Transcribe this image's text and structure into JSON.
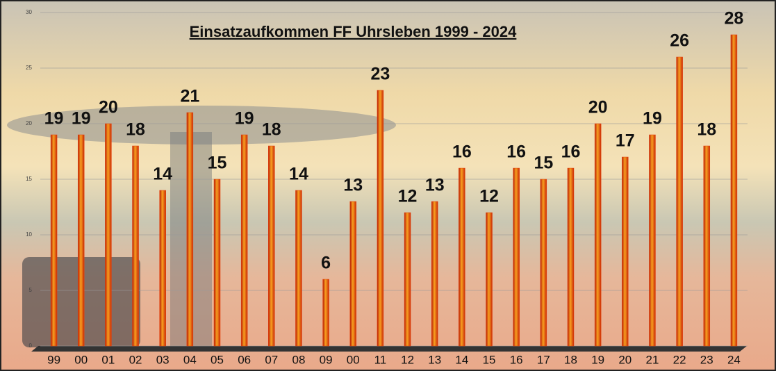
{
  "chart_data": {
    "type": "bar",
    "title": "Einsatzaufkommen FF Uhrsleben 1999 - 2024",
    "categories": [
      "99",
      "00",
      "01",
      "02",
      "03",
      "04",
      "05",
      "06",
      "07",
      "08",
      "09",
      "00",
      "11",
      "12",
      "13",
      "14",
      "15",
      "16",
      "17",
      "18",
      "19",
      "20",
      "21",
      "22",
      "23",
      "24"
    ],
    "values": [
      19,
      19,
      20,
      18,
      14,
      21,
      15,
      19,
      18,
      14,
      6,
      13,
      23,
      12,
      13,
      16,
      12,
      16,
      15,
      16,
      20,
      17,
      19,
      26,
      18,
      28
    ],
    "color": "#e8400c",
    "ylim": [
      0,
      30
    ],
    "yticks": [
      0,
      5,
      10,
      15,
      20,
      25,
      30
    ],
    "grid": true
  }
}
